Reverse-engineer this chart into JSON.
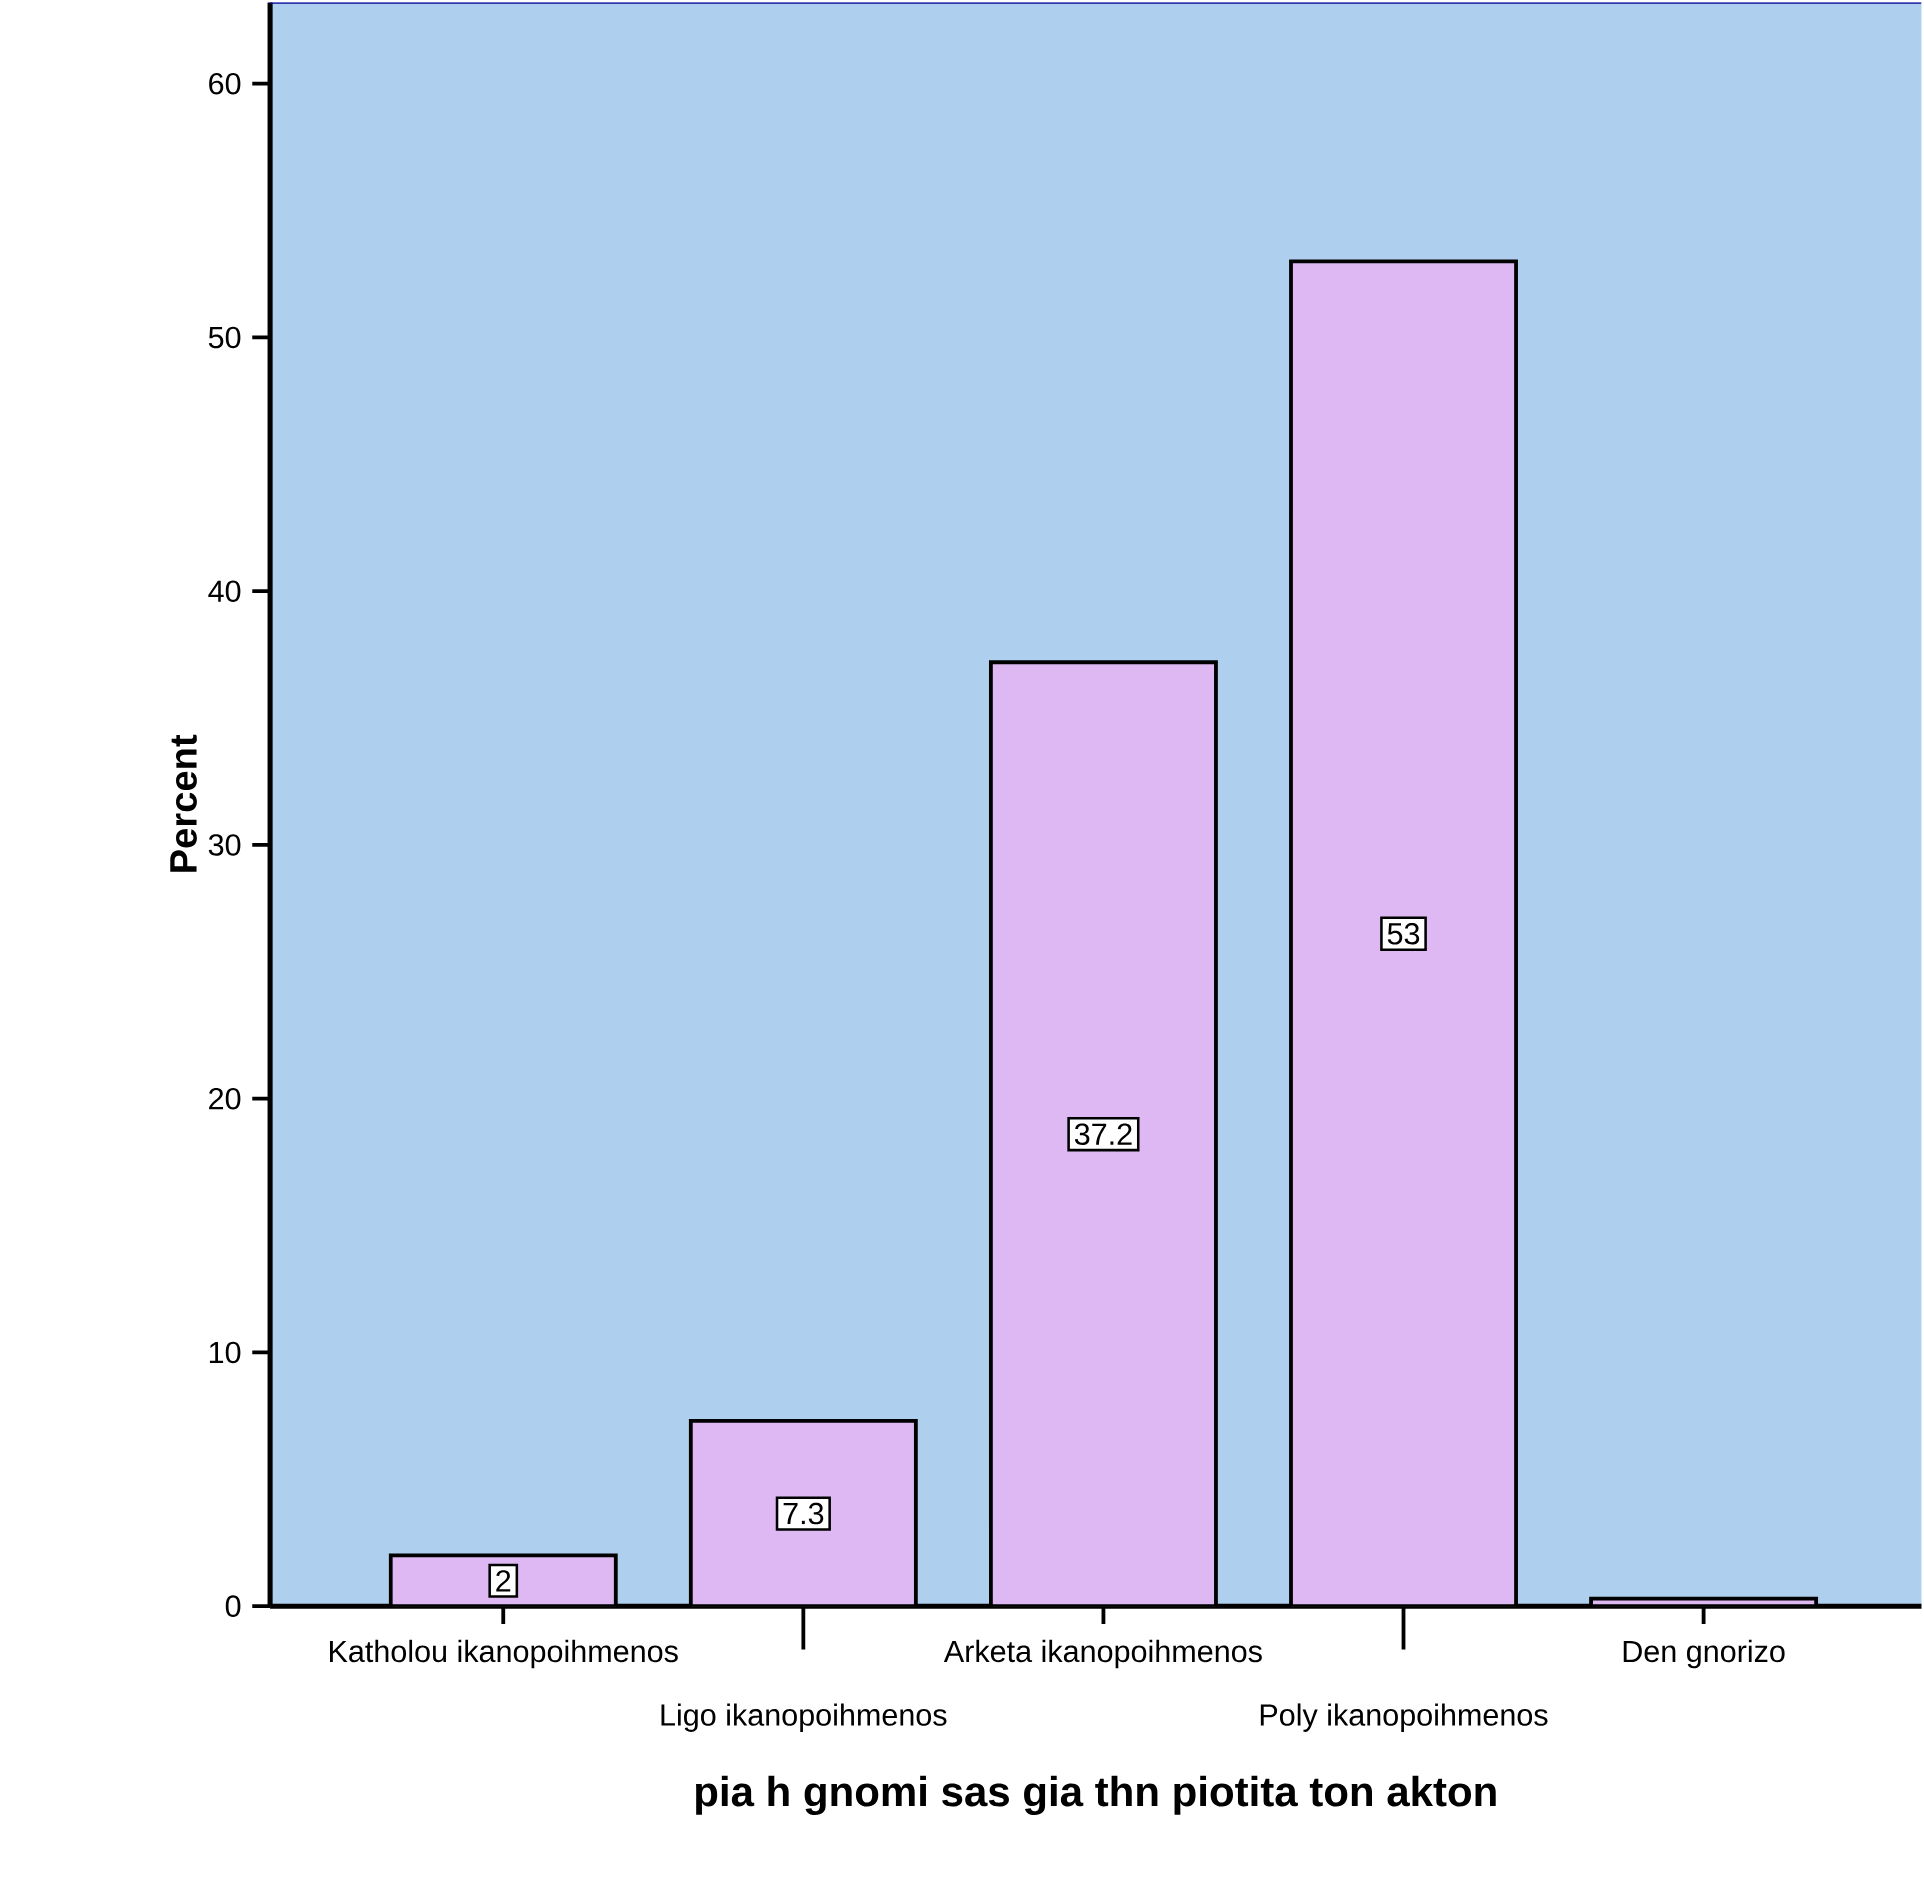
{
  "chart_data": {
    "type": "bar",
    "xlabel": "pia h gnomi sas gia thn piotita ton akton",
    "ylabel": "Percent",
    "categories": [
      "Katholou ikanopoihmenos",
      "Ligo ikanopoihmenos",
      "Arketa ikanopoihmenos",
      "Poly ikanopoihmenos",
      "Den gnorizo"
    ],
    "values": [
      2,
      7.3,
      37.2,
      53,
      0.3
    ],
    "value_labels": [
      "2",
      "7.3",
      "37.2",
      "53",
      null
    ],
    "color": "#ddb8f2",
    "ylim": [
      0,
      63.2
    ],
    "yticks": [
      0,
      10,
      20,
      30,
      40,
      50,
      60
    ],
    "grid": false
  }
}
